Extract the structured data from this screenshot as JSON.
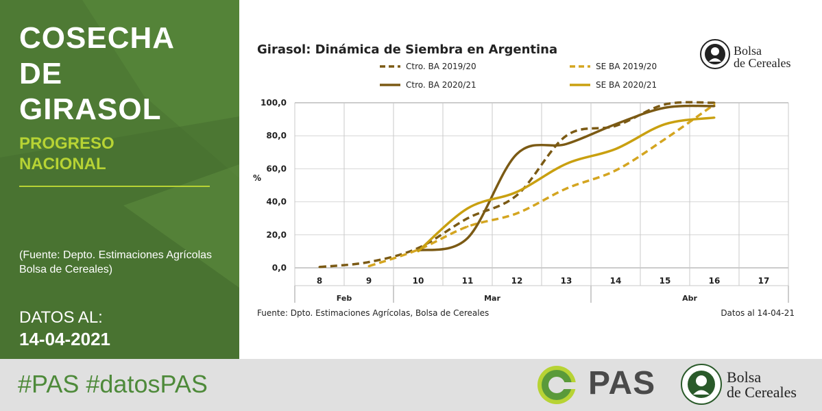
{
  "left_panel": {
    "title_lines": [
      "COSECHA",
      "DE",
      "GIRASOL"
    ],
    "subtitle_lines": [
      "PROGRESO",
      "NACIONAL"
    ],
    "source_note": "(Fuente: Depto. Estimaciones Agrícolas Bolsa de Cereales)",
    "date_label": "DATOS AL:",
    "date_value": "14-04-2021"
  },
  "bottom_bar": {
    "hashtags": "#PAS #datosPAS",
    "pas_logo_text": "PAS",
    "bolsa_logo_lines": [
      "Bolsa",
      "de Cereales"
    ]
  },
  "header_logo": {
    "bolsa_logo_lines": [
      "Bolsa",
      "de Cereales"
    ]
  },
  "colors": {
    "panel_green": "#4e7a34",
    "accent_lime": "#b7d334",
    "hashtag_green": "#4e8a3a",
    "series_ctro_1920": "#7b5a14",
    "series_se_1920": "#d4a520",
    "series_ctro_2021": "#7b5a14",
    "series_se_2021": "#c9a010"
  },
  "chart_data": {
    "type": "line",
    "title": "Girasol: Dinámica de Siembra en Argentina",
    "ylabel": "%",
    "xlabel": "",
    "ylim": [
      0,
      100
    ],
    "yticks": [
      "0,0",
      "20,0",
      "40,0",
      "60,0",
      "80,0",
      "100,0"
    ],
    "x": [
      "8",
      "9",
      "10",
      "11",
      "12",
      "13",
      "14",
      "15",
      "16",
      "17"
    ],
    "months": [
      {
        "label": "Feb",
        "from": 0,
        "to": 1
      },
      {
        "label": "Mar",
        "from": 2,
        "to": 5
      },
      {
        "label": "Abr",
        "from": 6,
        "to": 9
      }
    ],
    "grid": true,
    "legend_position": "top",
    "series": [
      {
        "name": "Ctro. BA 2019/20",
        "style": "dashed",
        "color": "#7b5a14",
        "values": [
          0.5,
          3.5,
          12,
          30,
          44,
          80,
          86,
          99,
          100,
          null
        ]
      },
      {
        "name": "SE BA 2019/20",
        "style": "dashed",
        "color": "#d4a520",
        "values": [
          null,
          1,
          11,
          25,
          33,
          48,
          59,
          78,
          99,
          null
        ]
      },
      {
        "name": "Ctro. BA 2020/21",
        "style": "solid",
        "color": "#7b5a14",
        "values": [
          null,
          null,
          10.5,
          18,
          69,
          75,
          87,
          97,
          98,
          null
        ]
      },
      {
        "name": "SE BA 2020/21",
        "style": "solid",
        "color": "#c9a010",
        "values": [
          null,
          null,
          10,
          36,
          46,
          63,
          72,
          87,
          91,
          null
        ]
      }
    ],
    "source": "Fuente: Dpto. Estimaciones Agrícolas, Bolsa de Cereales",
    "date_note": "Datos al 14-04-21"
  }
}
